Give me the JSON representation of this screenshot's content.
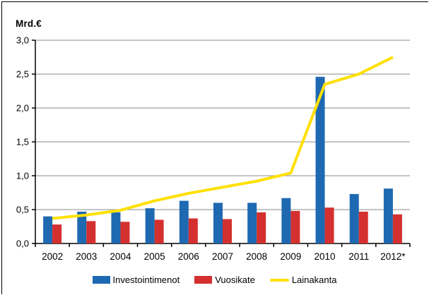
{
  "figure": {
    "unit_label": "Mrd.€"
  },
  "chart_data": {
    "type": "bar",
    "title": "",
    "unit": "Mrd.€",
    "categories": [
      "2002",
      "2003",
      "2004",
      "2005",
      "2006",
      "2007",
      "2008",
      "2009",
      "2010",
      "2011",
      "2012*"
    ],
    "series": [
      {
        "name": "Investointimenot",
        "type": "bar",
        "color": "#1e69b2",
        "values": [
          0.4,
          0.47,
          0.46,
          0.52,
          0.63,
          0.6,
          0.6,
          0.67,
          2.46,
          0.73,
          0.81
        ]
      },
      {
        "name": "Vuosikate",
        "type": "bar",
        "color": "#d4302f",
        "values": [
          0.28,
          0.33,
          0.32,
          0.35,
          0.37,
          0.36,
          0.46,
          0.48,
          0.53,
          0.47,
          0.43
        ]
      },
      {
        "name": "Lainakanta",
        "type": "line",
        "color": "#ffe000",
        "values": [
          0.37,
          0.42,
          0.49,
          0.63,
          0.74,
          0.83,
          0.92,
          1.04,
          2.35,
          2.5,
          2.75
        ]
      }
    ],
    "xlabel": "",
    "ylabel": "Mrd.€",
    "ylim": [
      0,
      3.0
    ],
    "ytick_step": 0.5,
    "ytick_labels": [
      "0,0",
      "0,5",
      "1,0",
      "1,5",
      "2,0",
      "2,5",
      "3,0"
    ],
    "grid": true,
    "legend_position": "bottom",
    "colors": {
      "axis": "#000000",
      "gridline": "#8a8a8a",
      "background": "#ffffff",
      "text": "#000000"
    }
  }
}
